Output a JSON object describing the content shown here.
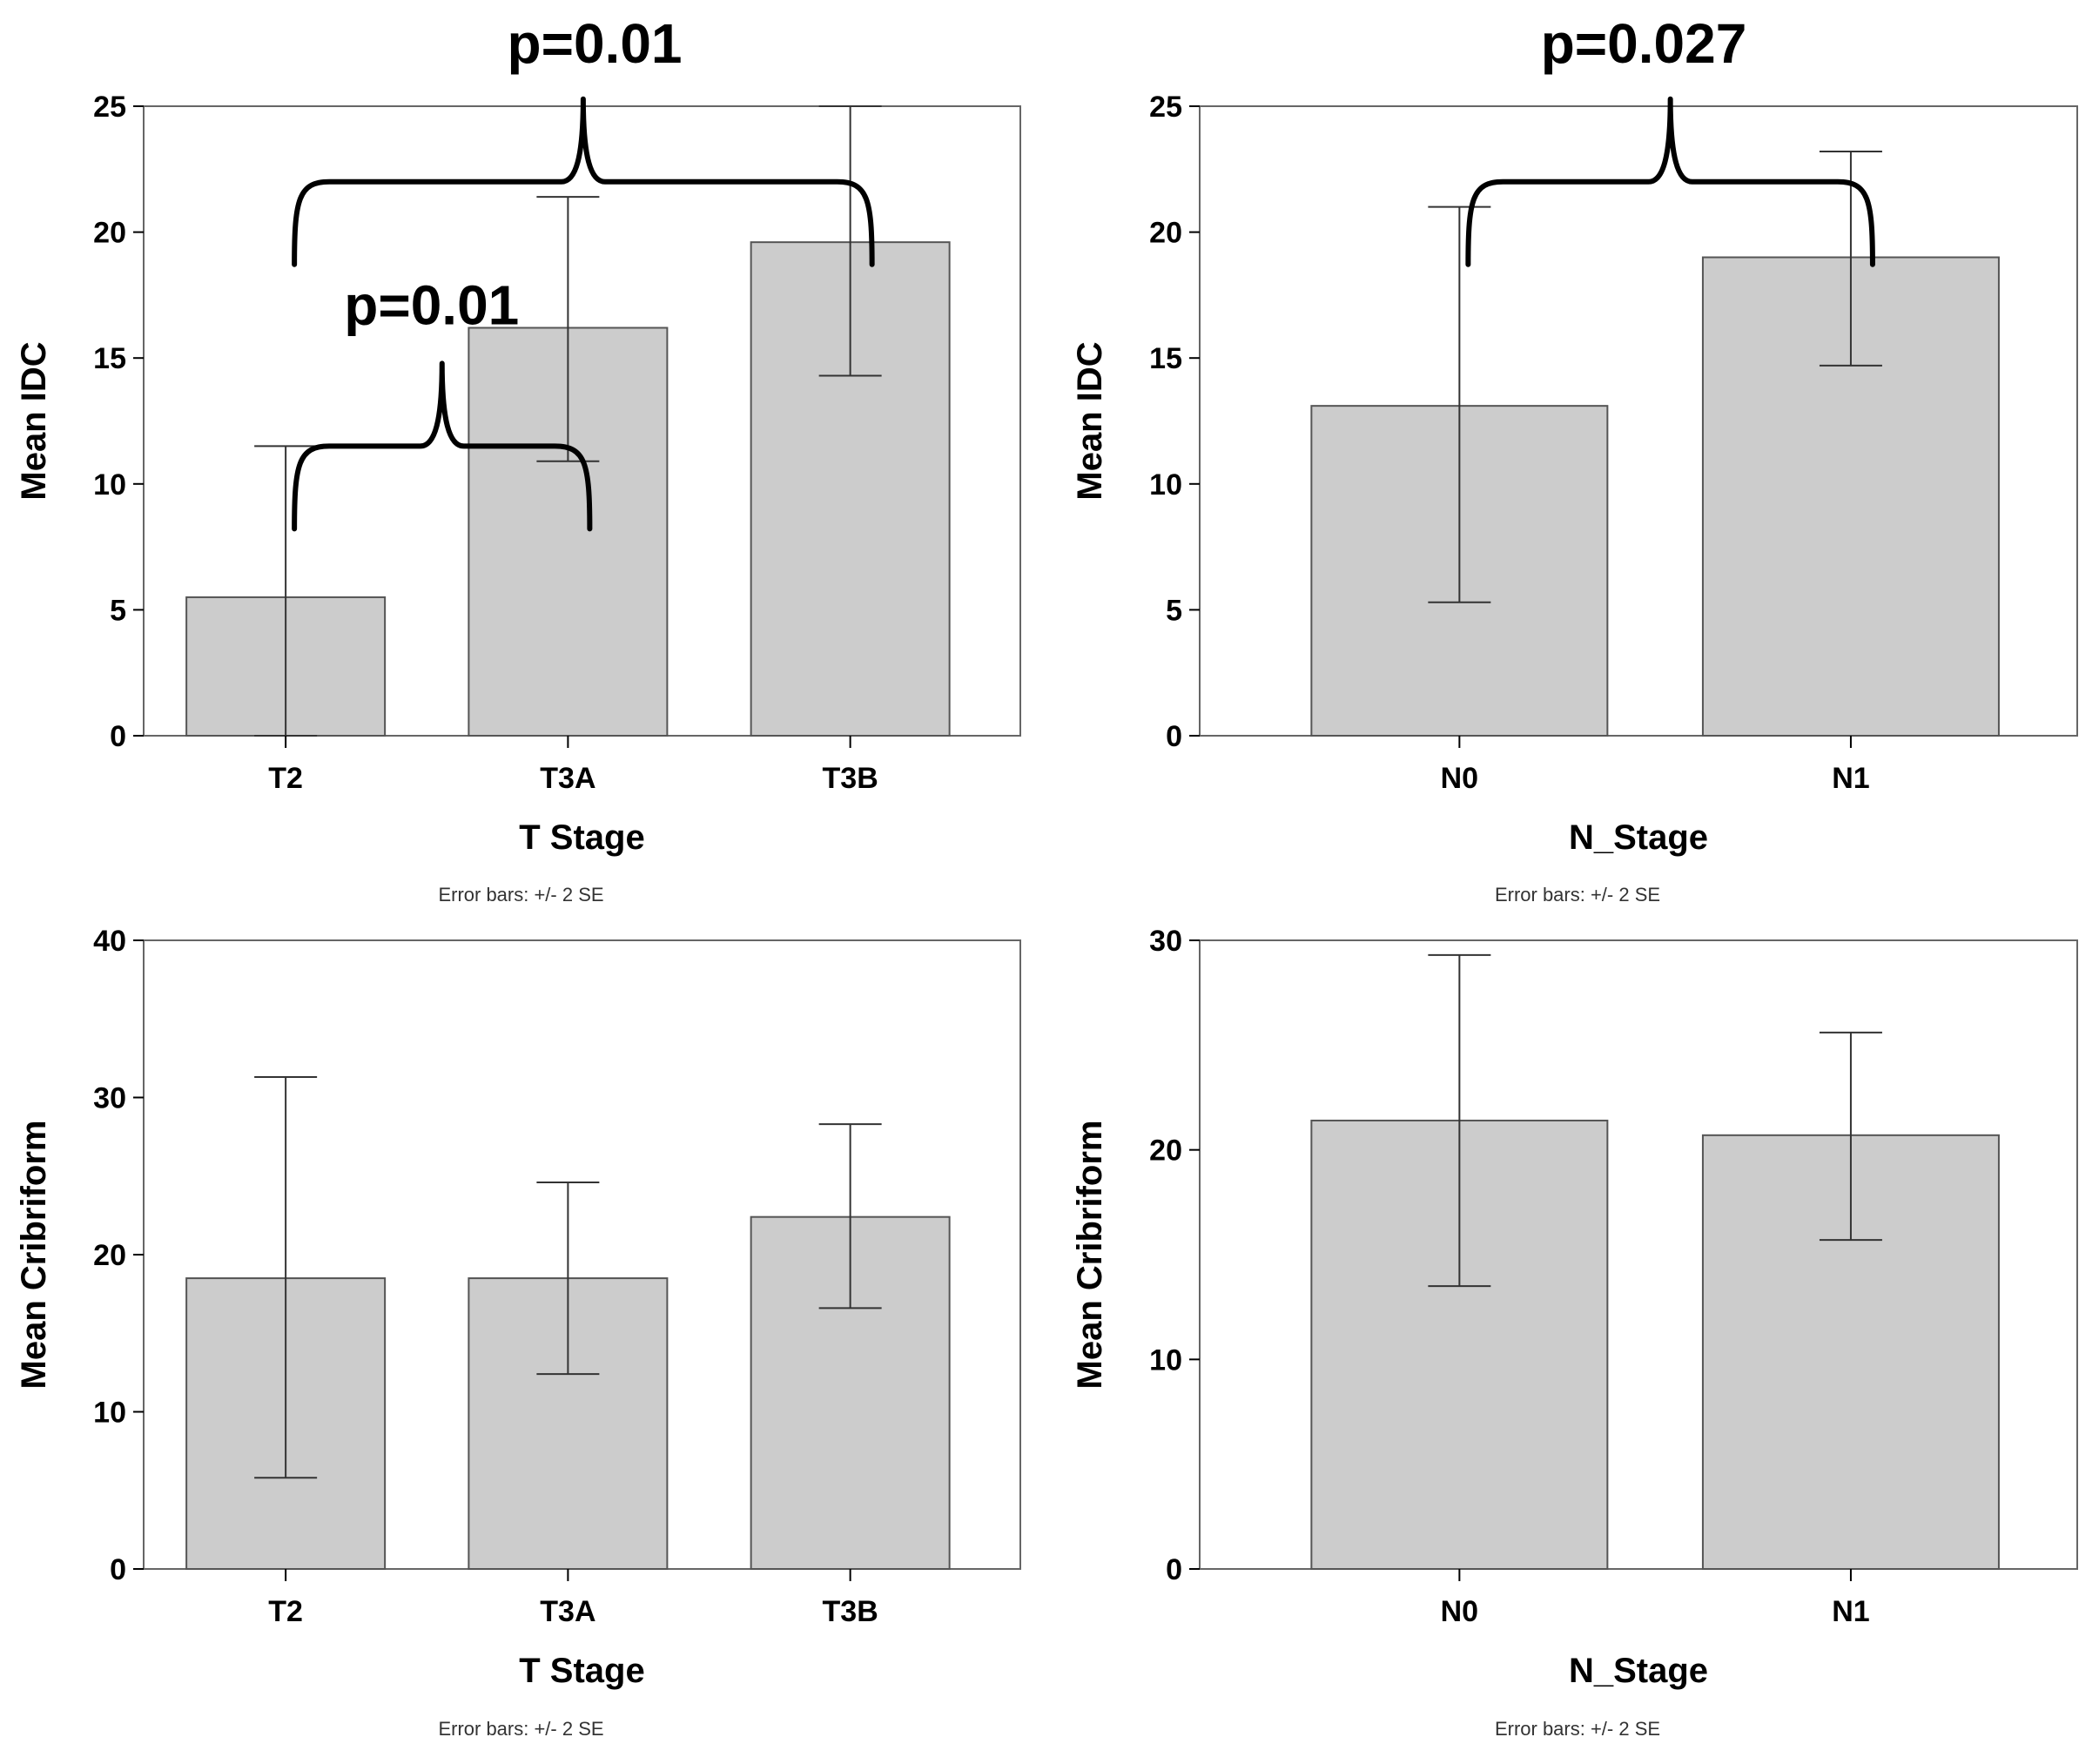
{
  "chart_data": [
    {
      "type": "bar",
      "id": "idc-t-stage",
      "title": "p=0.01",
      "xlabel": "T Stage",
      "ylabel": "Mean IDC",
      "ylim": [
        0,
        25
      ],
      "ticks": [
        0,
        5,
        10,
        15,
        20,
        25
      ],
      "categories": [
        "T2",
        "T3A",
        "T3B"
      ],
      "values": [
        5.5,
        16.2,
        19.6
      ],
      "error_low": [
        0,
        10.9,
        14.3
      ],
      "error_high": [
        11.5,
        21.4,
        25.0
      ],
      "error_note": "Error bars: +/- 2 SE",
      "annotations": [
        {
          "label": "p=0.01",
          "from": "T2",
          "to": "T3A",
          "level": 11.5
        },
        {
          "from": "T2",
          "to": "T3B",
          "level": 22.0
        }
      ]
    },
    {
      "type": "bar",
      "id": "idc-n-stage",
      "title": "p=0.027",
      "xlabel": "N_Stage",
      "ylabel": "Mean IDC",
      "ylim": [
        0,
        25
      ],
      "ticks": [
        0,
        5,
        10,
        15,
        20,
        25
      ],
      "categories": [
        "N0",
        "N1"
      ],
      "values": [
        13.1,
        19.0
      ],
      "error_low": [
        5.3,
        14.7
      ],
      "error_high": [
        21.0,
        23.2
      ],
      "error_note": "Error bars: +/- 2 SE",
      "annotations": [
        {
          "from": "N0",
          "to": "N1",
          "level": 22.0
        }
      ]
    },
    {
      "type": "bar",
      "id": "cribriform-t-stage",
      "title": "",
      "xlabel": "T Stage",
      "ylabel": "Mean Cribriform",
      "ylim": [
        0,
        40
      ],
      "ticks": [
        0,
        10,
        20,
        30,
        40
      ],
      "categories": [
        "T2",
        "T3A",
        "T3B"
      ],
      "values": [
        18.5,
        18.5,
        22.4
      ],
      "error_low": [
        5.8,
        12.4,
        16.6
      ],
      "error_high": [
        31.3,
        24.6,
        28.3
      ],
      "error_note": "Error bars: +/- 2 SE",
      "annotations": []
    },
    {
      "type": "bar",
      "id": "cribriform-n-stage",
      "title": "",
      "xlabel": "N_Stage",
      "ylabel": "Mean Cribriform",
      "ylim": [
        0,
        30
      ],
      "ticks": [
        0,
        10,
        20,
        30
      ],
      "categories": [
        "N0",
        "N1"
      ],
      "values": [
        21.4,
        20.7
      ],
      "error_low": [
        13.5,
        15.7
      ],
      "error_high": [
        29.3,
        25.6
      ],
      "error_note": "Error bars: +/- 2 SE",
      "annotations": []
    }
  ],
  "colors": {
    "bar_fill": "#cccccc",
    "bar_stroke": "#555555",
    "frame": "#666666",
    "error_bar": "#333333",
    "bracket": "#000000"
  }
}
